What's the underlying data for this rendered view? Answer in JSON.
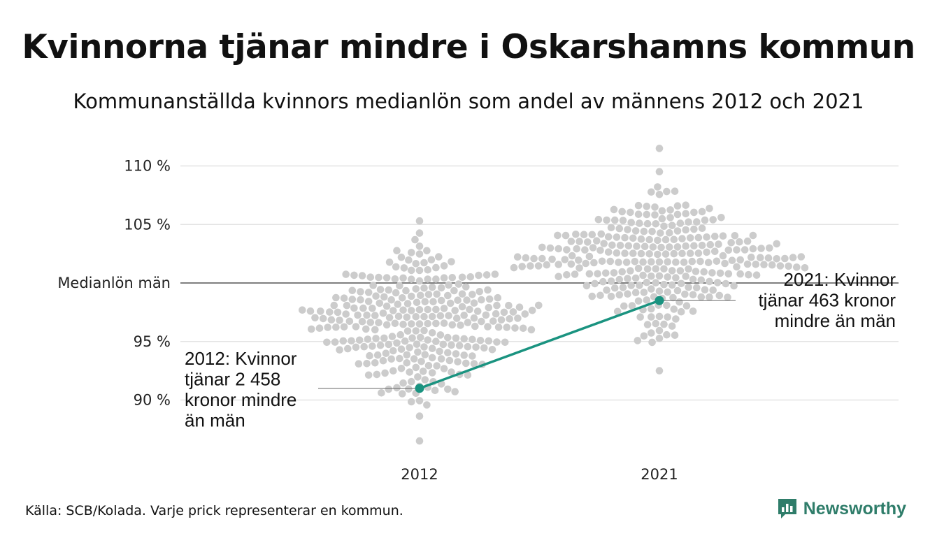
{
  "title": "Kvinnorna tjänar mindre i Oskarshamns kommun",
  "subtitle": "Kommunanställda kvinnors medianlön som andel av männens 2012 och 2021",
  "source": "Källa: SCB/Kolada. Varje prick representerar en kommun.",
  "brand": {
    "name": "Newsworthy",
    "icon": "newsworthy-logo-icon",
    "color": "#2f7d6a"
  },
  "colors": {
    "dots": "#cccccc",
    "highlight": "#1a9380",
    "grid": "#e3e3e3",
    "reference": "#333333"
  },
  "chart_data": {
    "type": "scatter",
    "subtype": "beeswarm",
    "categories": [
      "2012",
      "2021"
    ],
    "y_ticks": [
      {
        "value": 110,
        "label": "110 %"
      },
      {
        "value": 105,
        "label": "105 %"
      },
      {
        "value": 100,
        "label": "Medianlön män"
      },
      {
        "value": 95,
        "label": "95 %"
      },
      {
        "value": 90,
        "label": "90 %"
      }
    ],
    "ylim": [
      86,
      111.5
    ],
    "reference_value": 100,
    "distributions": [
      {
        "category": "2012",
        "min": 86.5,
        "max": 105.3,
        "center": 96.5,
        "spread": 2.7
      },
      {
        "category": "2021",
        "min": 92.5,
        "max": 111.5,
        "center": 101.8,
        "spread": 2.8
      }
    ],
    "highlight": {
      "name": "Oskarshamn",
      "points": [
        {
          "category": "2012",
          "value": 91.0
        },
        {
          "category": "2021",
          "value": 98.5
        }
      ]
    },
    "annotations": [
      {
        "category": "2012",
        "lines": [
          "2012: Kvinnor",
          "tjänar 2 458",
          "kronor mindre",
          "än män"
        ]
      },
      {
        "category": "2021",
        "lines": [
          "2021: Kvinnor",
          "tjänar 463 kronor",
          "mindre än män"
        ]
      }
    ]
  }
}
